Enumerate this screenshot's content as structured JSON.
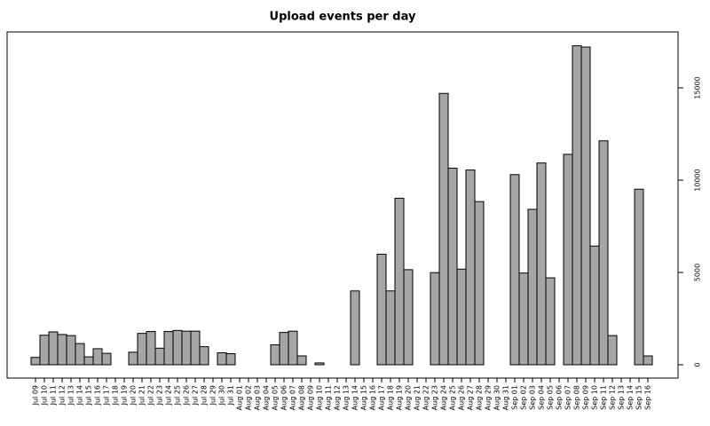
{
  "chart_data": {
    "type": "bar",
    "title": "Upload events per day",
    "categories": [
      "Jul 09",
      "Jul 10",
      "Jul 11",
      "Jul 12",
      "Jul 13",
      "Jul 14",
      "Jul 15",
      "Jul 16",
      "Jul 17",
      "Jul 18",
      "Jul 19",
      "Jul 20",
      "Jul 21",
      "Jul 22",
      "Jul 23",
      "Jul 24",
      "Jul 25",
      "Jul 26",
      "Jul 27",
      "Jul 28",
      "Jul 29",
      "Jul 30",
      "Jul 31",
      "Aug 01",
      "Aug 02",
      "Aug 03",
      "Aug 04",
      "Aug 05",
      "Aug 06",
      "Aug 07",
      "Aug 08",
      "Aug 09",
      "Aug 10",
      "Aug 11",
      "Aug 12",
      "Aug 13",
      "Aug 14",
      "Aug 15",
      "Aug 16",
      "Aug 17",
      "Aug 18",
      "Aug 19",
      "Aug 20",
      "Aug 21",
      "Aug 22",
      "Aug 23",
      "Aug 24",
      "Aug 25",
      "Aug 26",
      "Aug 27",
      "Aug 28",
      "Aug 29",
      "Aug 30",
      "Aug 31",
      "Sep 01",
      "Sep 02",
      "Sep 03",
      "Sep 04",
      "Sep 05",
      "Sep 06",
      "Sep 07",
      "Sep 08",
      "Sep 09",
      "Sep 10",
      "Sep 11",
      "Sep 12",
      "Sep 13",
      "Sep 14",
      "Sep 15",
      "Sep 16"
    ],
    "values": [
      400,
      1600,
      1780,
      1640,
      1580,
      1150,
      430,
      870,
      620,
      0,
      0,
      680,
      1700,
      1800,
      900,
      1800,
      1860,
      1820,
      1820,
      980,
      0,
      650,
      600,
      0,
      0,
      0,
      0,
      1080,
      1750,
      1820,
      480,
      0,
      100,
      0,
      0,
      0,
      4000,
      0,
      0,
      5990,
      4000,
      9020,
      5150,
      0,
      0,
      4990,
      14700,
      10650,
      5180,
      10550,
      8840,
      0,
      0,
      0,
      10300,
      4970,
      8420,
      10930,
      4710,
      0,
      11400,
      17280,
      17210,
      6430,
      12130,
      1580,
      0,
      0,
      9510,
      480
    ],
    "color": "#a6a6a6",
    "ylim": [
      -721,
      18029
    ],
    "yticks": [
      0,
      5000,
      10000,
      15000
    ],
    "y_axis_side": "right"
  }
}
